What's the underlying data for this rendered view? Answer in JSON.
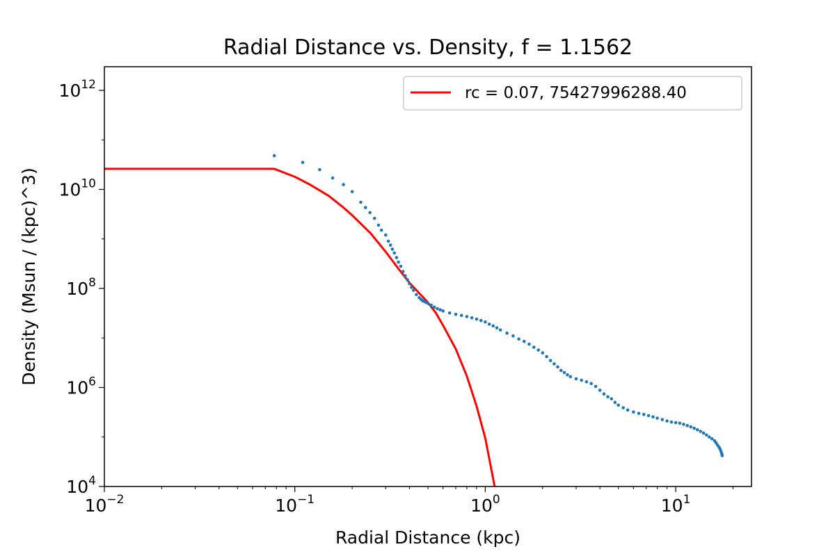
{
  "chart_data": {
    "type": "scatter",
    "title": "Radial Distance vs. Density, f = 1.1562",
    "xlabel": "Radial Distance (kpc)",
    "ylabel": "Density (Msun / (kpc)^3)",
    "xscale": "log",
    "yscale": "log",
    "xlim": [
      0.01,
      25
    ],
    "ylim": [
      10000,
      3000000000000
    ],
    "x_ticks": [
      {
        "value": 0.01,
        "base": "10",
        "exp": "−2"
      },
      {
        "value": 0.1,
        "base": "10",
        "exp": "−1"
      },
      {
        "value": 1,
        "base": "10",
        "exp": "0"
      },
      {
        "value": 10,
        "base": "10",
        "exp": "1"
      }
    ],
    "y_ticks": [
      {
        "value": 10000,
        "base": "10",
        "exp": "4"
      },
      {
        "value": 1000000,
        "base": "10",
        "exp": "6"
      },
      {
        "value": 100000000,
        "base": "10",
        "exp": "8"
      },
      {
        "value": 10000000000,
        "base": "10",
        "exp": "10"
      },
      {
        "value": 1000000000000,
        "base": "10",
        "exp": "12"
      }
    ],
    "grid": false,
    "legend_position": "upper right",
    "series": [
      {
        "kind": "scatter",
        "color": "#1f77b4",
        "x": [
          0.078,
          0.11,
          0.135,
          0.158,
          0.18,
          0.2,
          0.222,
          0.235,
          0.248,
          0.262,
          0.275,
          0.285,
          0.3,
          0.31,
          0.318,
          0.325,
          0.333,
          0.342,
          0.35,
          0.36,
          0.37,
          0.38,
          0.39,
          0.4,
          0.41,
          0.42,
          0.435,
          0.45,
          0.46,
          0.47,
          0.48,
          0.49,
          0.5,
          0.52,
          0.54,
          0.56,
          0.58,
          0.6,
          0.65,
          0.7,
          0.75,
          0.8,
          0.85,
          0.9,
          0.95,
          1.0,
          1.05,
          1.1,
          1.15,
          1.2,
          1.3,
          1.4,
          1.5,
          1.6,
          1.7,
          1.8,
          1.9,
          2.0,
          2.1,
          2.2,
          2.3,
          2.4,
          2.5,
          2.6,
          2.7,
          2.8,
          3.0,
          3.2,
          3.4,
          3.6,
          3.8,
          4.0,
          4.2,
          4.4,
          4.6,
          4.8,
          5.0,
          5.3,
          5.6,
          6.0,
          6.4,
          6.8,
          7.2,
          7.6,
          8.0,
          8.5,
          9.0,
          9.5,
          10.0,
          10.5,
          11.0,
          11.5,
          12.0,
          12.5,
          13.0,
          13.5,
          14.0,
          14.5,
          15.0,
          15.5,
          16.0,
          16.3,
          16.6,
          16.9,
          17.1,
          17.3,
          17.45,
          17.55
        ],
        "y": [
          48000000000,
          35000000000,
          25000000000,
          17000000000,
          12500000000,
          9000000000,
          5500000000,
          4300000000,
          3400000000,
          2600000000,
          1900000000,
          1500000000,
          1200000000,
          900000000,
          750000000,
          620000000,
          520000000,
          420000000,
          340000000,
          280000000,
          220000000,
          180000000,
          150000000,
          125000000,
          105000000,
          92000000,
          75000000,
          65000000,
          60000000,
          56000000,
          54000000,
          52000000,
          50000000,
          46000000,
          42000000,
          39000000,
          37000000,
          35000000,
          32000000,
          30000000,
          28500000,
          27000000,
          25500000,
          24000000,
          22500000,
          21000000,
          19000000,
          17500000,
          16000000,
          14500000,
          12500000,
          11000000,
          9500000,
          8500000,
          7500000,
          6500000,
          5700000,
          5000000,
          4200000,
          3500000,
          3000000,
          2600000,
          2200000,
          2000000,
          1800000,
          1650000,
          1500000,
          1400000,
          1300000,
          1200000,
          1050000,
          880000,
          740000,
          650000,
          590000,
          500000,
          440000,
          390000,
          350000,
          320000,
          300000,
          285000,
          270000,
          255000,
          240000,
          225000,
          210000,
          200000,
          195000,
          190000,
          180000,
          170000,
          160000,
          150000,
          140000,
          130000,
          120000,
          110000,
          100000,
          92000,
          84000,
          76000,
          68000,
          62000,
          57000,
          51000,
          46000,
          42000
        ]
      },
      {
        "kind": "line",
        "name": "rc = 0.07, 75427996288.40",
        "color": "#ff0000",
        "x": [
          0.01,
          0.078,
          0.1,
          0.12,
          0.15,
          0.18,
          0.2,
          0.25,
          0.3,
          0.35,
          0.4,
          0.45,
          0.5,
          0.55,
          0.6,
          0.7,
          0.8,
          0.9,
          1.0,
          1.12
        ],
        "y": [
          26000000000,
          26000000000,
          18000000000,
          12500000000,
          7500000000,
          4300000000,
          3000000000,
          1300000000,
          550000000,
          250000000,
          130000000,
          80000000,
          52000000,
          32000000,
          18000000,
          6000000,
          1700000,
          420000,
          95000,
          10000
        ]
      }
    ]
  }
}
